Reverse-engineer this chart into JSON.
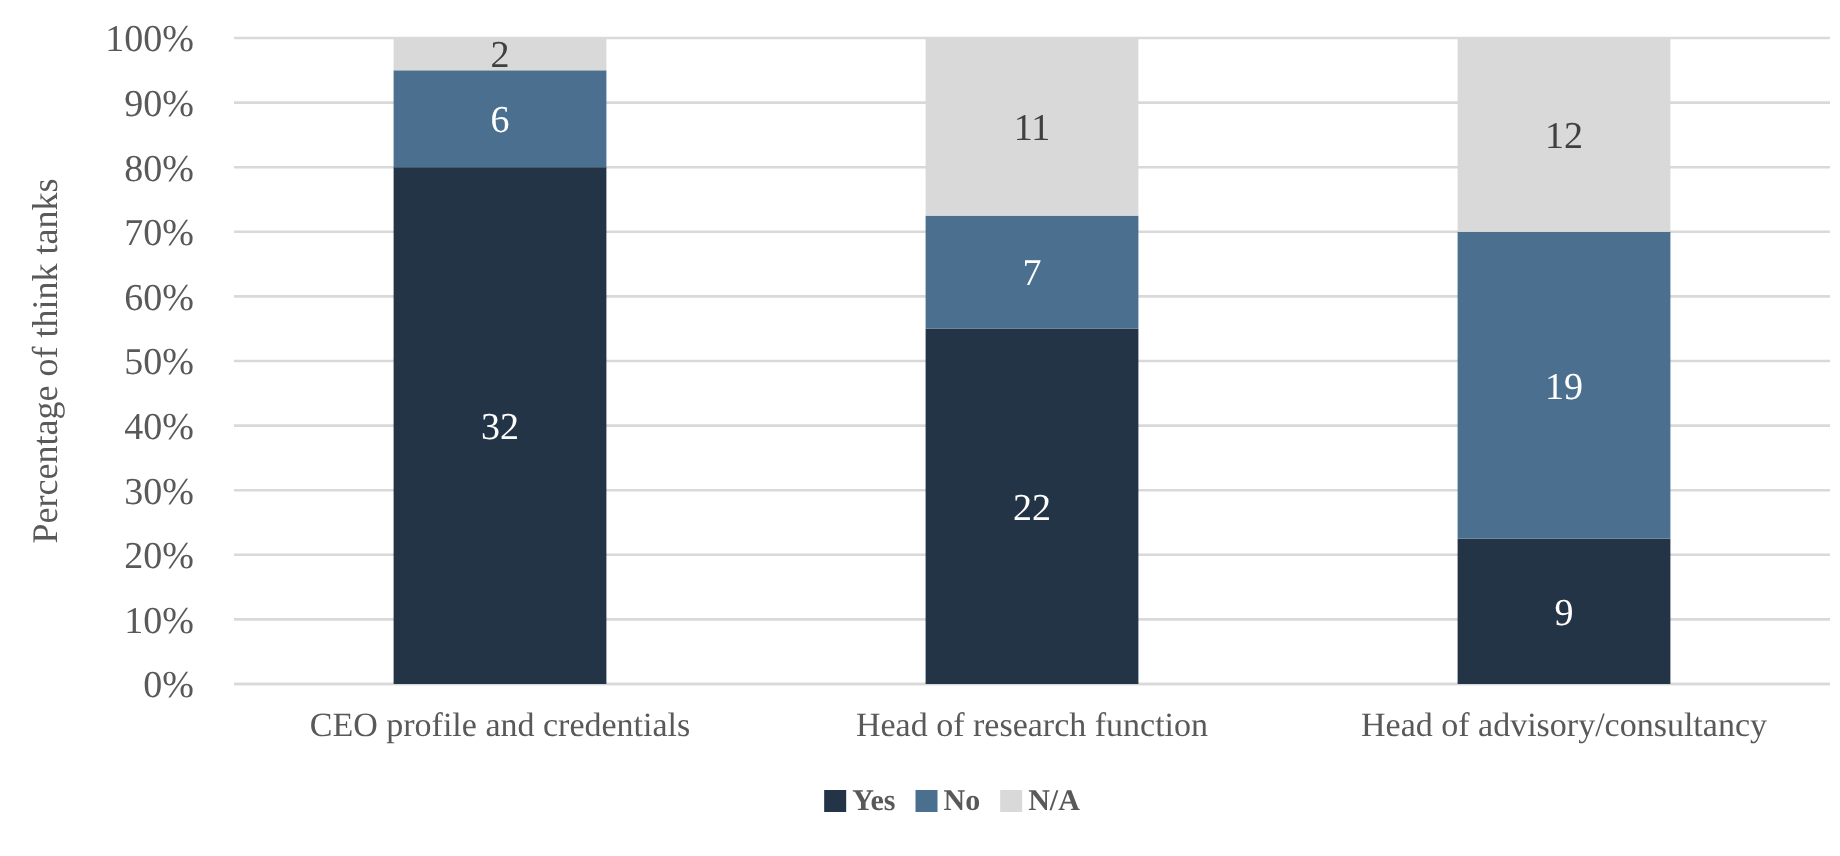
{
  "chart_data": {
    "type": "bar",
    "stacked": true,
    "ylabel": "Percentage of think tanks",
    "categories": [
      "CEO profile and credentials",
      "Head of research function",
      "Head of advisory/consultancy"
    ],
    "series": [
      {
        "name": "Yes",
        "color": "#243447",
        "values": [
          80,
          55,
          22.5
        ]
      },
      {
        "name": "No",
        "color": "#4a6f8f",
        "values": [
          15,
          17.5,
          47.5
        ]
      },
      {
        "name": "N/A",
        "color": "#d9d9d9",
        "values": [
          5,
          27.5,
          30
        ]
      }
    ],
    "annotations": [
      "32",
      "22",
      "9",
      "6",
      "7",
      "19",
      "2",
      "11",
      "12"
    ],
    "ylim": [
      0,
      100
    ],
    "yticks": [
      {
        "value": 0,
        "label": "0%"
      },
      {
        "value": 10,
        "label": "10%"
      },
      {
        "value": 20,
        "label": "20%"
      },
      {
        "value": 30,
        "label": "30%"
      },
      {
        "value": 40,
        "label": "40%"
      },
      {
        "value": 50,
        "label": "50%"
      },
      {
        "value": 60,
        "label": "60%"
      },
      {
        "value": 70,
        "label": "70%"
      },
      {
        "value": 80,
        "label": "80%"
      },
      {
        "value": 90,
        "label": "90%"
      },
      {
        "value": 100,
        "label": "100%"
      }
    ],
    "grid": "y",
    "legend": "bottom"
  }
}
